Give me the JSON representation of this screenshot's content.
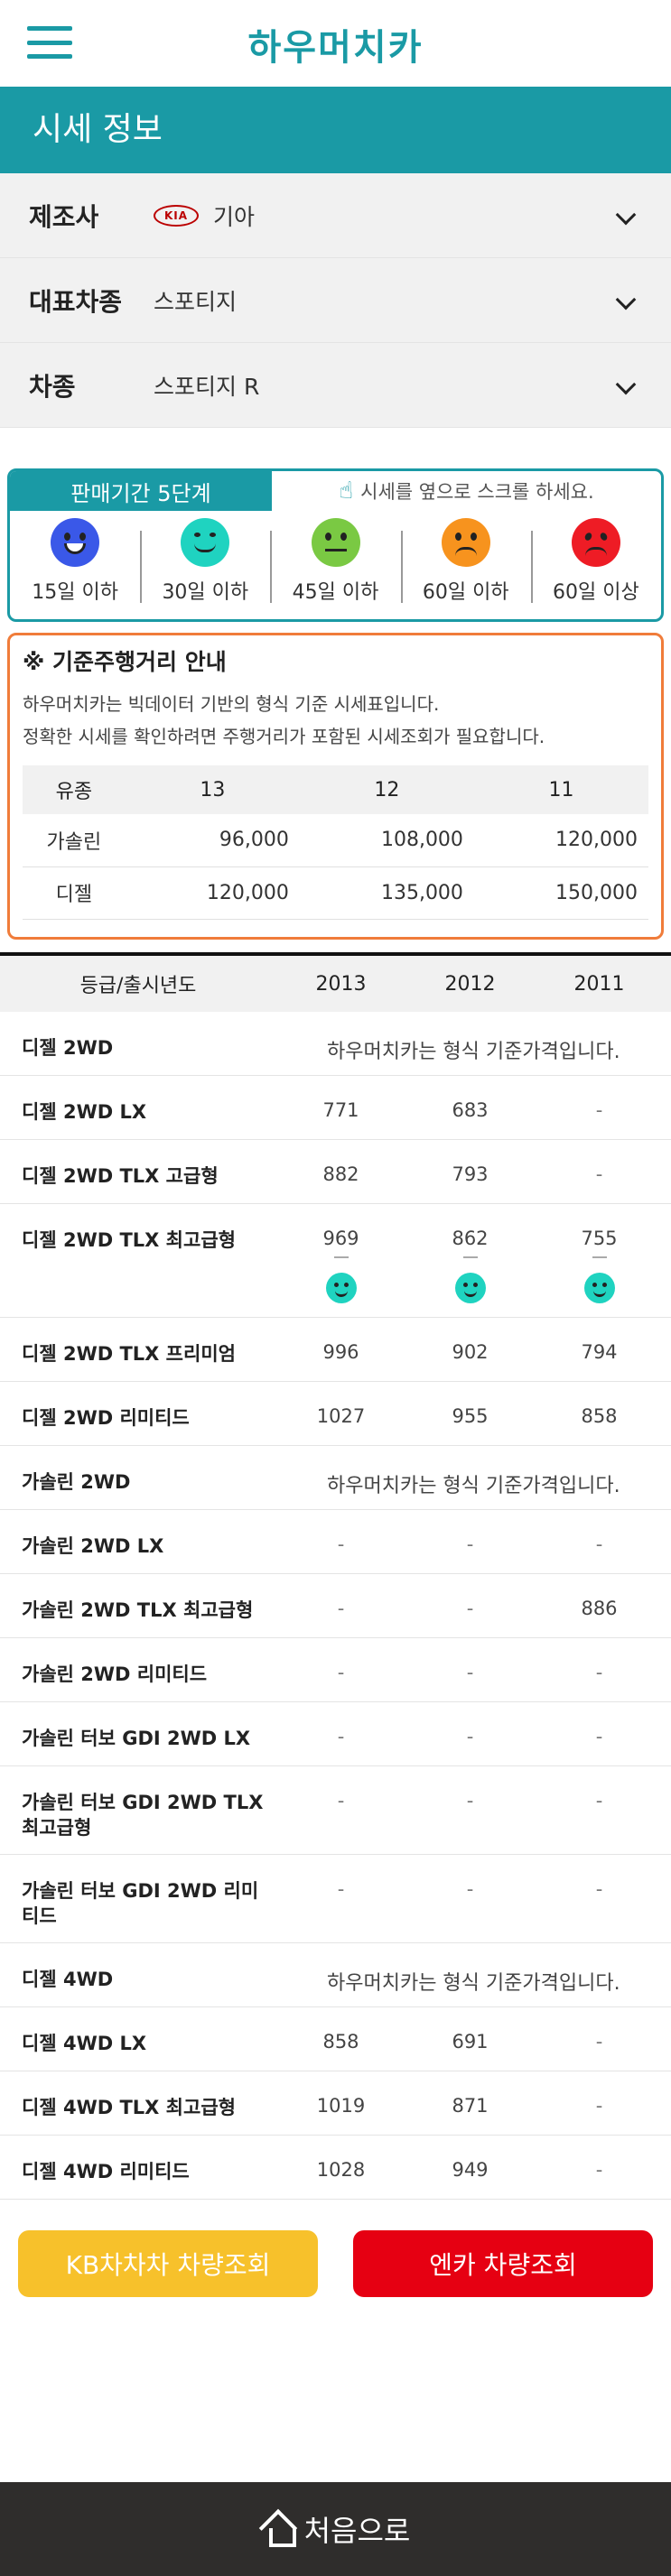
{
  "header": {
    "logo": "하우머치카",
    "menu_icon": "hamburger-menu-icon"
  },
  "title": "시세 정보",
  "selector": {
    "maker_label": "제조사",
    "maker_value": "기아",
    "maker_logo_text": "KIA",
    "model_label": "대표차종",
    "model_value": "스포티지",
    "type_label": "차종",
    "type_value": "스포티지 R"
  },
  "stage": {
    "tab": "판매기간 5단계",
    "hint": "시세를 옆으로 스크롤 하세요.",
    "items": [
      {
        "label": "15일 이하",
        "color": "#3a58e8",
        "mood": "very-happy"
      },
      {
        "label": "30일 이하",
        "color": "#1fd3c0",
        "mood": "happy"
      },
      {
        "label": "45일 이하",
        "color": "#7ac943",
        "mood": "neutral"
      },
      {
        "label": "60일 이하",
        "color": "#f7931e",
        "mood": "sad"
      },
      {
        "label": "60일 이상",
        "color": "#ee1c25",
        "mood": "angry"
      }
    ]
  },
  "notice": {
    "title": "※ 기준주행거리 안내",
    "line1": "하우머치카는 빅데이터 기반의 형식 기준 시세표입니다.",
    "line2": "정확한 시세를 확인하려면 주행거리가 포함된 시세조회가 필요합니다.",
    "head": [
      "유종",
      "13",
      "12",
      "11"
    ],
    "rows": [
      [
        "가솔린",
        "96,000",
        "108,000",
        "120,000"
      ],
      [
        "디젤",
        "120,000",
        "135,000",
        "150,000"
      ]
    ]
  },
  "prices": {
    "head": [
      "등급/출시년도",
      "2013",
      "2012",
      "2011"
    ],
    "base_text": "하우머치카는 형식 기준가격입니다.",
    "rows": [
      {
        "name": "디젤 2WD",
        "base": true
      },
      {
        "name": "디젤 2WD LX",
        "v": [
          "771",
          "683",
          "-"
        ]
      },
      {
        "name": "디젤 2WD TLX 고급형",
        "v": [
          "882",
          "793",
          "-"
        ]
      },
      {
        "name": "디젤 2WD TLX 최고급형",
        "v": [
          "969",
          "862",
          "755"
        ],
        "faces": true
      },
      {
        "name": "디젤 2WD TLX 프리미엄",
        "v": [
          "996",
          "902",
          "794"
        ]
      },
      {
        "name": "디젤 2WD 리미티드",
        "v": [
          "1027",
          "955",
          "858"
        ]
      },
      {
        "name": "가솔린 2WD",
        "base": true
      },
      {
        "name": "가솔린 2WD LX",
        "v": [
          "-",
          "-",
          "-"
        ]
      },
      {
        "name": "가솔린 2WD TLX 최고급형",
        "v": [
          "-",
          "-",
          "886"
        ]
      },
      {
        "name": "가솔린 2WD 리미티드",
        "v": [
          "-",
          "-",
          "-"
        ]
      },
      {
        "name": "가솔린 터보 GDI 2WD LX",
        "v": [
          "-",
          "-",
          "-"
        ]
      },
      {
        "name": "가솔린 터보 GDI 2WD TLX 최고급형",
        "v": [
          "-",
          "-",
          "-"
        ],
        "tall": true
      },
      {
        "name": "가솔린 터보 GDI 2WD 리미티드",
        "v": [
          "-",
          "-",
          "-"
        ],
        "tall": true
      },
      {
        "name": "디젤 4WD",
        "base": true
      },
      {
        "name": "디젤 4WD LX",
        "v": [
          "858",
          "691",
          "-"
        ]
      },
      {
        "name": "디젤 4WD TLX 최고급형",
        "v": [
          "1019",
          "871",
          "-"
        ]
      },
      {
        "name": "디젤 4WD 리미티드",
        "v": [
          "1028",
          "949",
          "-"
        ]
      }
    ]
  },
  "buttons": {
    "kb": "KB차차차 차량조회",
    "encar": "엔카 차량조회"
  },
  "footer": {
    "label": "처음으로"
  }
}
